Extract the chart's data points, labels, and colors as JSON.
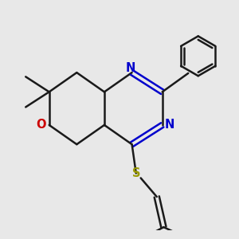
{
  "bg_color": "#e8e8e8",
  "bond_color": "#1a1a1a",
  "N_color": "#0000cc",
  "O_color": "#cc0000",
  "S_color": "#999900",
  "line_width": 1.8,
  "font_size": 10.5,
  "xlim": [
    0.5,
    9.0
  ],
  "ylim": [
    1.5,
    9.5
  ]
}
